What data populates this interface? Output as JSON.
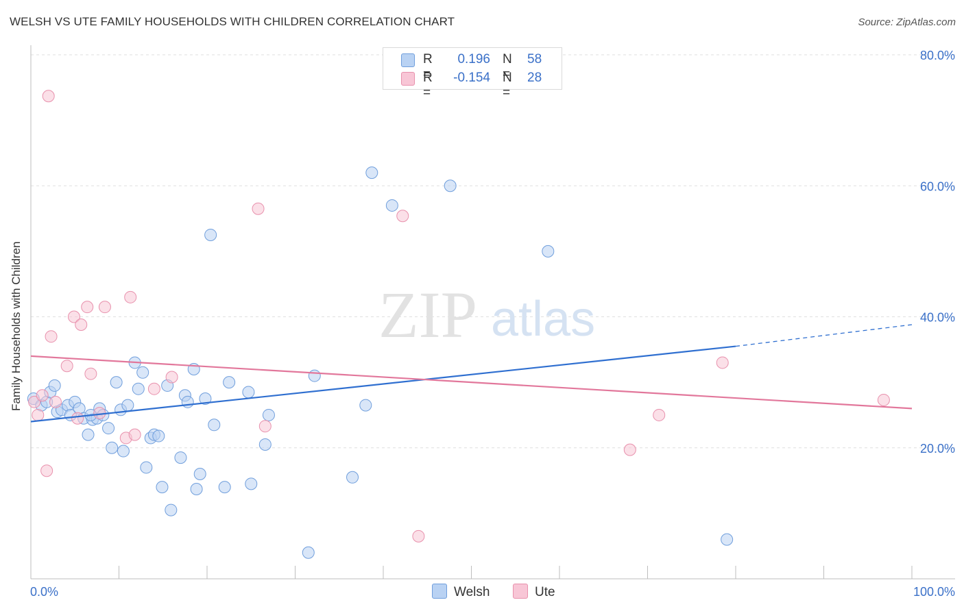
{
  "title": "WELSH VS UTE FAMILY HOUSEHOLDS WITH CHILDREN CORRELATION CHART",
  "source": "Source: ZipAtlas.com",
  "watermark": {
    "zip": "ZIP",
    "atlas": "atlas"
  },
  "colors": {
    "welsh_fill": "#b9d2f3",
    "welsh_stroke": "#6f9edc",
    "welsh_line": "#2f6fd0",
    "ute_fill": "#f8c6d6",
    "ute_stroke": "#e890ac",
    "ute_line": "#e2779b",
    "tick_label": "#3a70c8",
    "grid": "#dfdfdf"
  },
  "legend": {
    "welsh": {
      "r_label": "R =",
      "r_value": "0.196",
      "n_label": "N =",
      "n_value": "58"
    },
    "ute": {
      "r_label": "R =",
      "r_value": "-0.154",
      "n_label": "N =",
      "n_value": "28"
    }
  },
  "bottom_legend": {
    "welsh": "Welsh",
    "ute": "Ute"
  },
  "chart_data": {
    "type": "scatter",
    "xlabel": "",
    "ylabel": "Family Households with Children",
    "xlim": [
      0,
      100
    ],
    "ylim": [
      0,
      80
    ],
    "x_tick_labels": [
      "0.0%",
      "100.0%"
    ],
    "y_ticks": [
      20,
      40,
      60,
      80
    ],
    "y_tick_labels": [
      "20.0%",
      "40.0%",
      "60.0%",
      "80.0%"
    ],
    "grid": true,
    "series": [
      {
        "name": "Welsh",
        "points": [
          [
            0.3,
            27.5
          ],
          [
            1.2,
            26.5
          ],
          [
            1.8,
            27.0
          ],
          [
            2.2,
            28.5
          ],
          [
            2.7,
            29.5
          ],
          [
            3.0,
            25.5
          ],
          [
            3.5,
            25.8
          ],
          [
            4.2,
            26.5
          ],
          [
            4.5,
            25.0
          ],
          [
            5.0,
            27.0
          ],
          [
            5.5,
            26.0
          ],
          [
            6.0,
            24.5
          ],
          [
            6.5,
            22.0
          ],
          [
            7.0,
            24.3
          ],
          [
            7.5,
            24.5
          ],
          [
            7.8,
            26.0
          ],
          [
            8.2,
            25.0
          ],
          [
            8.8,
            23.0
          ],
          [
            9.2,
            20.0
          ],
          [
            9.7,
            30.0
          ],
          [
            10.2,
            25.8
          ],
          [
            10.5,
            19.5
          ],
          [
            11.0,
            26.5
          ],
          [
            11.8,
            33.0
          ],
          [
            12.2,
            29.0
          ],
          [
            12.7,
            31.5
          ],
          [
            13.1,
            17.0
          ],
          [
            13.6,
            21.5
          ],
          [
            14.0,
            22.0
          ],
          [
            14.5,
            21.8
          ],
          [
            14.9,
            14.0
          ],
          [
            15.5,
            29.5
          ],
          [
            15.9,
            10.5
          ],
          [
            17.0,
            18.5
          ],
          [
            17.5,
            28.0
          ],
          [
            17.8,
            27.0
          ],
          [
            18.5,
            32.0
          ],
          [
            18.8,
            13.7
          ],
          [
            19.2,
            16.0
          ],
          [
            19.8,
            27.5
          ],
          [
            20.4,
            52.5
          ],
          [
            20.8,
            23.5
          ],
          [
            22.0,
            14.0
          ],
          [
            22.5,
            30.0
          ],
          [
            24.7,
            28.5
          ],
          [
            25.0,
            14.5
          ],
          [
            26.6,
            20.5
          ],
          [
            27.0,
            25.0
          ],
          [
            31.5,
            4.0
          ],
          [
            32.2,
            31.0
          ],
          [
            36.5,
            15.5
          ],
          [
            38.0,
            26.5
          ],
          [
            38.7,
            62.0
          ],
          [
            41.0,
            57.0
          ],
          [
            47.6,
            60.0
          ],
          [
            58.7,
            50.0
          ],
          [
            79.0,
            6.0
          ],
          [
            6.8,
            25.0
          ]
        ]
      },
      {
        "name": "Ute",
        "points": [
          [
            0.4,
            27.0
          ],
          [
            0.8,
            25.0
          ],
          [
            1.3,
            28.0
          ],
          [
            1.8,
            16.5
          ],
          [
            2.3,
            37.0
          ],
          [
            2.8,
            27.0
          ],
          [
            4.1,
            32.5
          ],
          [
            4.9,
            40.0
          ],
          [
            5.3,
            24.5
          ],
          [
            5.7,
            38.8
          ],
          [
            6.4,
            41.5
          ],
          [
            6.8,
            31.3
          ],
          [
            7.8,
            25.3
          ],
          [
            8.4,
            41.5
          ],
          [
            10.8,
            21.5
          ],
          [
            11.3,
            43.0
          ],
          [
            11.8,
            22.0
          ],
          [
            14.0,
            29.0
          ],
          [
            16.0,
            30.8
          ],
          [
            25.8,
            56.5
          ],
          [
            26.6,
            23.3
          ],
          [
            42.2,
            55.4
          ],
          [
            44.0,
            6.5
          ],
          [
            68.0,
            19.7
          ],
          [
            71.3,
            25.0
          ],
          [
            78.5,
            33.0
          ],
          [
            96.8,
            27.3
          ],
          [
            2.0,
            73.7
          ]
        ]
      }
    ],
    "trend_lines": [
      {
        "series": "Welsh",
        "x": [
          0,
          80
        ],
        "y": [
          24.0,
          35.5
        ],
        "dashed_extension": {
          "x": [
            80,
            100
          ],
          "y": [
            35.5,
            38.8
          ]
        }
      },
      {
        "series": "Ute",
        "x": [
          0,
          100
        ],
        "y": [
          34.0,
          26.0
        ]
      }
    ]
  }
}
